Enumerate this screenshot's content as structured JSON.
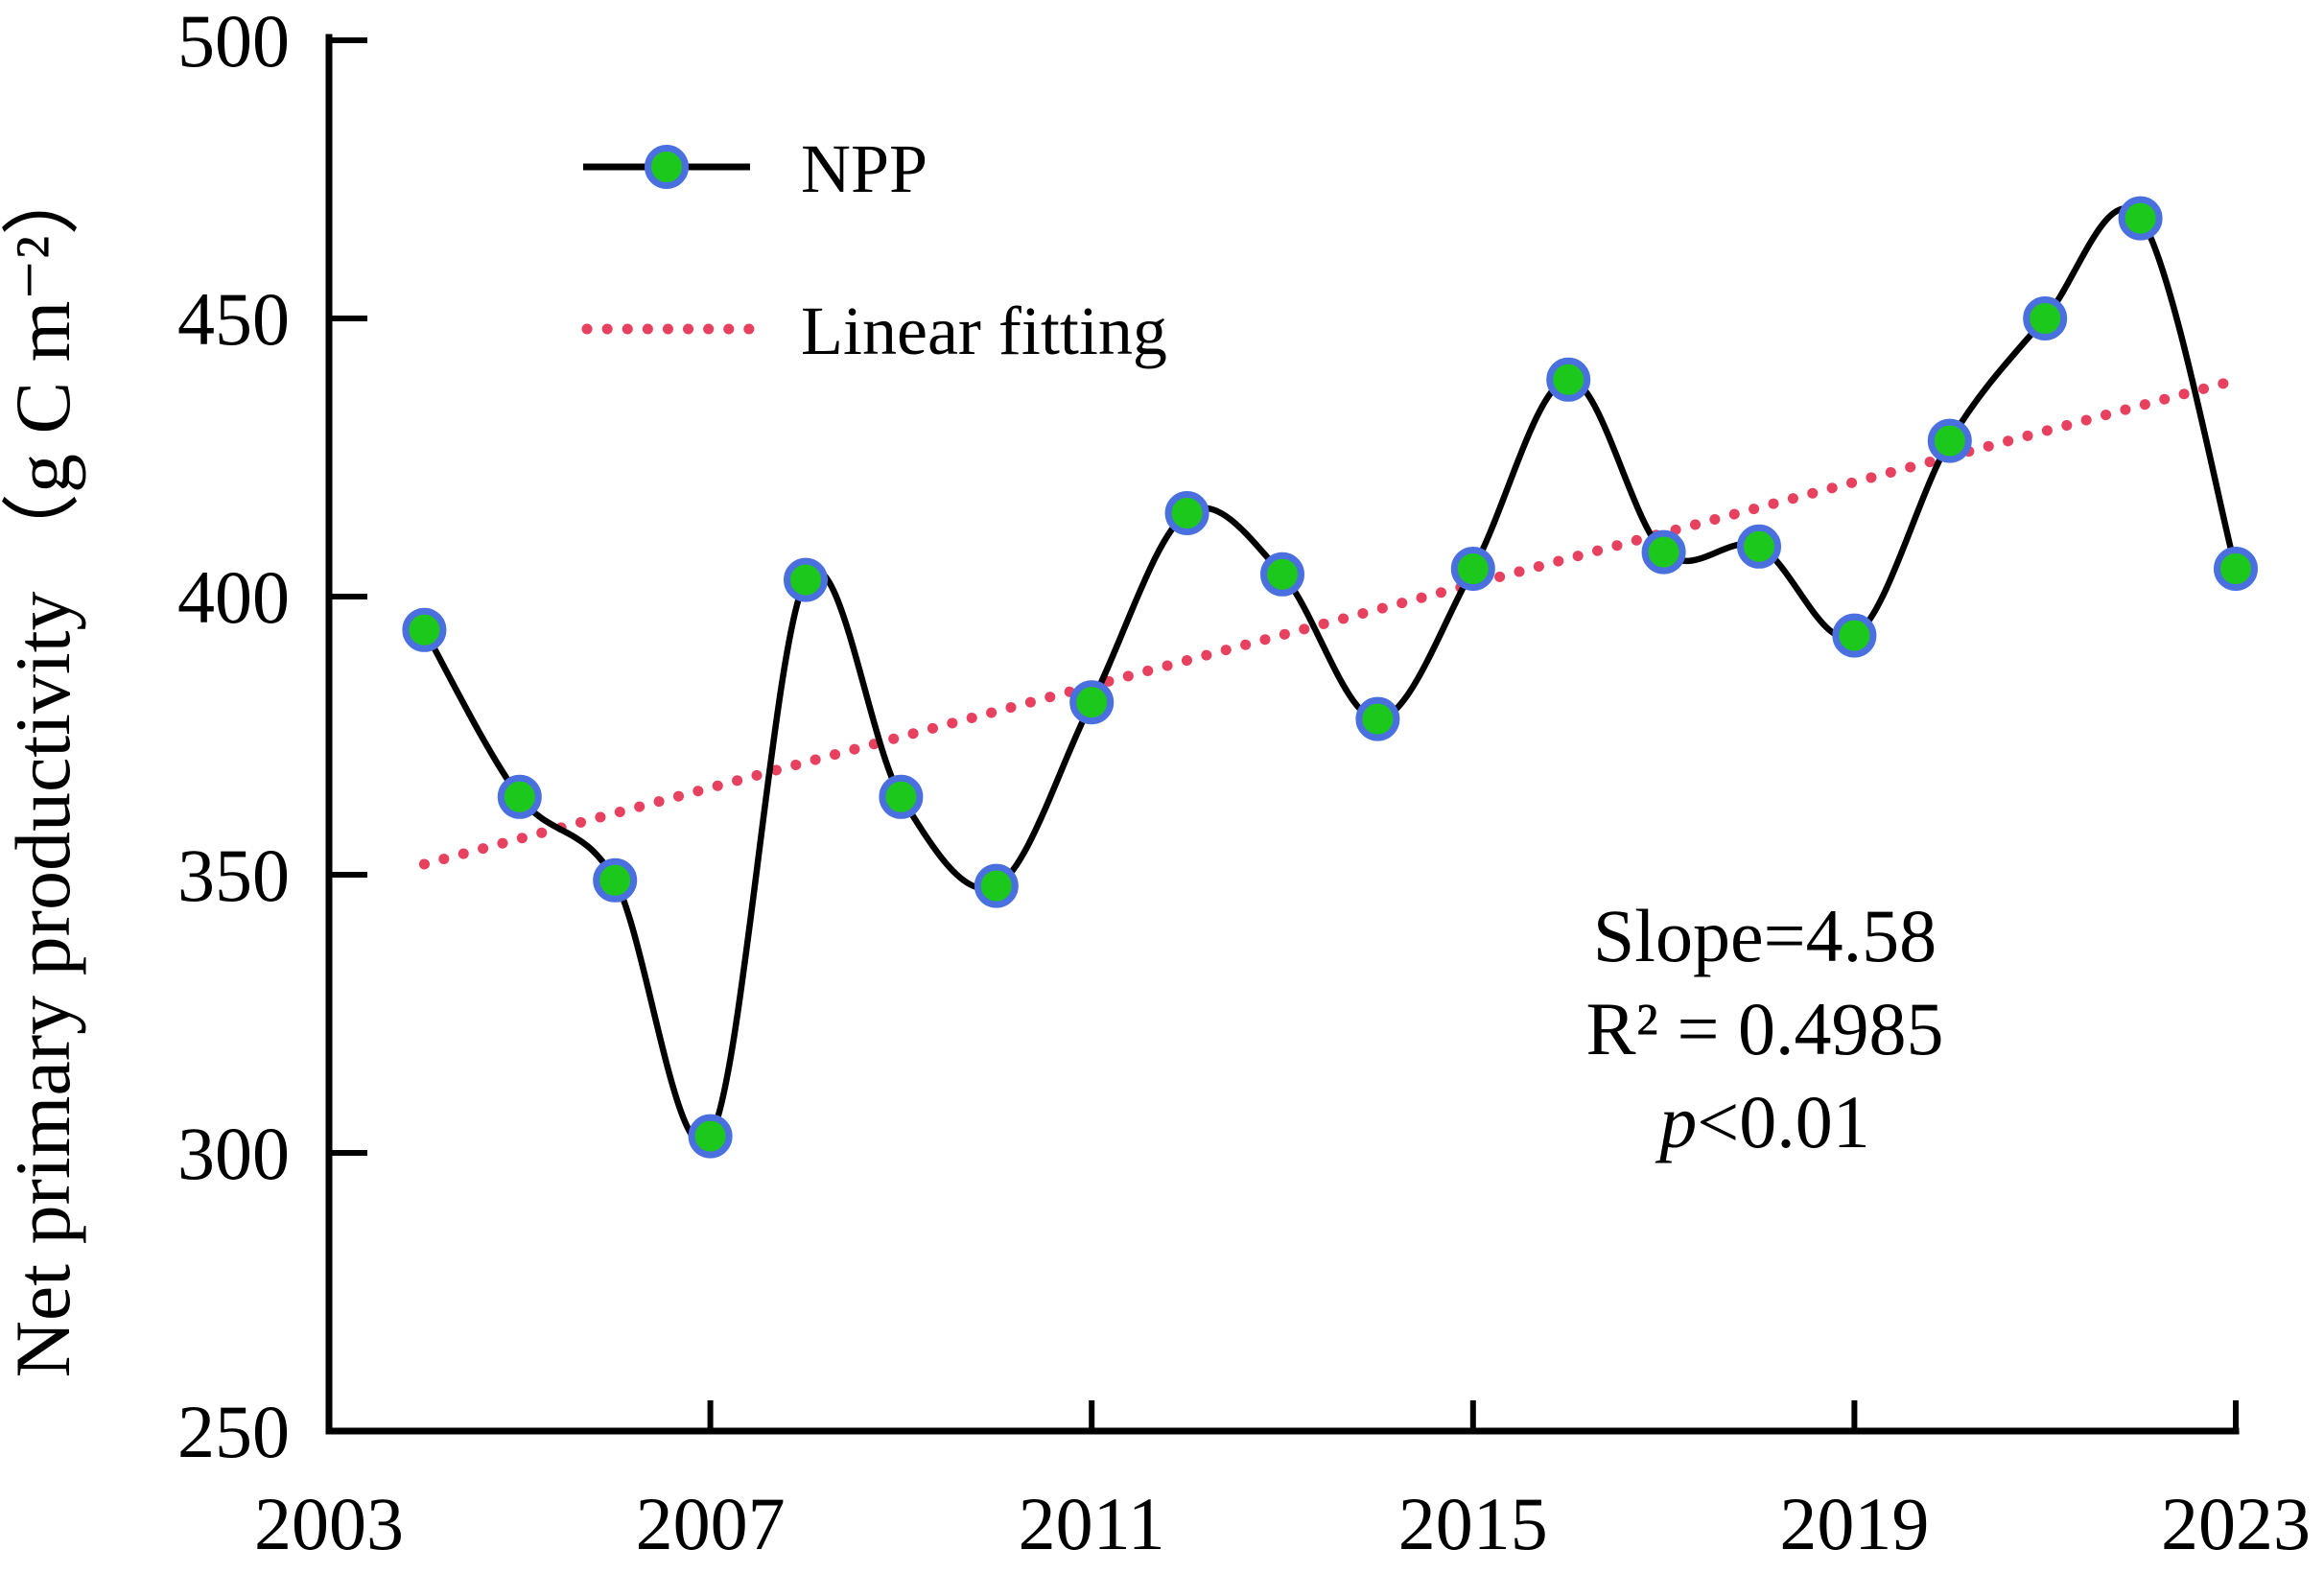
{
  "figure": {
    "legend": {
      "npp_label": "NPP",
      "fit_label": "Linear fitting"
    },
    "y_axis": {
      "title": "Net primary productivity （g C m⁻²）",
      "tick_labels": [
        "500",
        "450",
        "400",
        "350",
        "300",
        "250"
      ]
    },
    "x_axis": {
      "tick_labels": [
        "2003",
        "2007",
        "2011",
        "2015",
        "2019",
        "2023"
      ]
    },
    "annotation": {
      "slope": "Slope=4.58",
      "r2": "R² = 0.4985",
      "p_italic": "p",
      "p_rest": "<0.01"
    }
  },
  "chart_data": {
    "type": "line",
    "title": "",
    "xlabel": "",
    "ylabel": "Net primary productivity (g C m⁻²)",
    "xlim": [
      2003,
      2023
    ],
    "ylim": [
      250,
      500
    ],
    "x_ticks": [
      2003,
      2007,
      2011,
      2015,
      2019,
      2023
    ],
    "y_ticks": [
      500,
      450,
      400,
      350,
      300,
      250
    ],
    "grid": false,
    "legend_position": "upper left",
    "x": [
      2004,
      2005,
      2006,
      2007,
      2008,
      2009,
      2010,
      2011,
      2012,
      2013,
      2014,
      2015,
      2016,
      2017,
      2018,
      2019,
      2020,
      2021,
      2022,
      2023
    ],
    "series": [
      {
        "name": "NPP",
        "style": "smoothed line with circle markers",
        "values": [
          394,
          364,
          349,
          303,
          403,
          364,
          348,
          381,
          415,
          404,
          378,
          405,
          439,
          408,
          409,
          393,
          428,
          450,
          468,
          405
        ]
      },
      {
        "name": "Linear fitting",
        "style": "dotted straight line",
        "slope_per_year": 4.58,
        "r_squared": 0.4985,
        "p_value": "<0.01",
        "endpoints": [
          [
            2004,
            351.9
          ],
          [
            2023,
            438.9
          ]
        ]
      }
    ],
    "colors": {
      "npp_line": "#000000",
      "marker_fill": "#1dc81d",
      "marker_edge": "#4a70e0",
      "fit_line": "#e8415f",
      "text": "#000000"
    }
  }
}
